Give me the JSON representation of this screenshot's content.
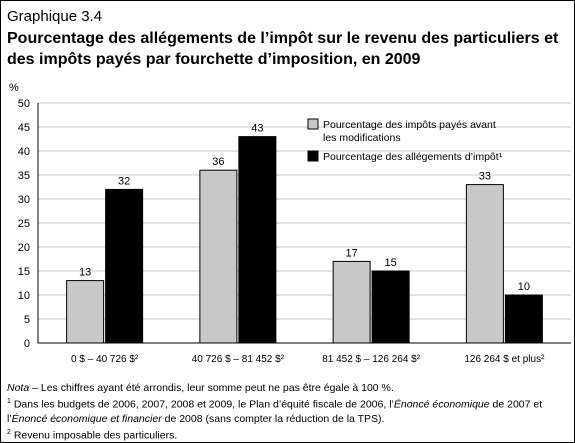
{
  "graph_number": "Graphique 3.4",
  "colors": {
    "series_light": "#c8c8c8",
    "series_dark": "#000000",
    "grid": "#c8c8c8",
    "axis": "#000000"
  },
  "chart_data": {
    "type": "bar",
    "title": "Pourcentage des allégements de l’impôt sur le revenu des particuliers et des impôts payés par fourchette d’imposition, en 2009",
    "ylabel": "%",
    "xlabel": "",
    "ylim": [
      0,
      50
    ],
    "yticks": [
      0,
      5,
      10,
      15,
      20,
      25,
      30,
      35,
      40,
      45,
      50
    ],
    "grid": true,
    "legend_position": "top-right",
    "categories": [
      "0 $ – 40 726 $²",
      "40 726 $ – 81 452 $²",
      "81 452 $ – 126 264 $²",
      "126 264 $ et plus²"
    ],
    "series": [
      {
        "name": "Pourcentage des impôts payés avant les modifications",
        "name_lines": [
          "Pourcentage des impôts payés avant",
          "les modifications"
        ],
        "color": "#c8c8c8",
        "values": [
          13,
          36,
          17,
          33
        ]
      },
      {
        "name": "Pourcentage des allégements d’impôt¹",
        "name_lines": [
          "Pourcentage des allégements d’impôt¹"
        ],
        "color": "#000000",
        "values": [
          32,
          43,
          15,
          10
        ]
      }
    ]
  },
  "notes": {
    "note_label": "Nota",
    "note_text": "– Les chiffres ayant été arrondis, leur somme peut ne pas être égale à 100 %.",
    "fn1_marker": "1",
    "fn1_a": "Dans les budgets de 2006, 2007, 2008 et 2009, le Plan d’équité fiscale de 2006, l’",
    "fn1_b": "Énoncé économique",
    "fn1_c": " de 2007 et l’",
    "fn1_d": "Énoncé économique et financier",
    "fn1_e": " de 2008 (sans compter la réduction de la TPS).",
    "fn2_marker": "2",
    "fn2_text": "Revenu imposable des particuliers."
  }
}
